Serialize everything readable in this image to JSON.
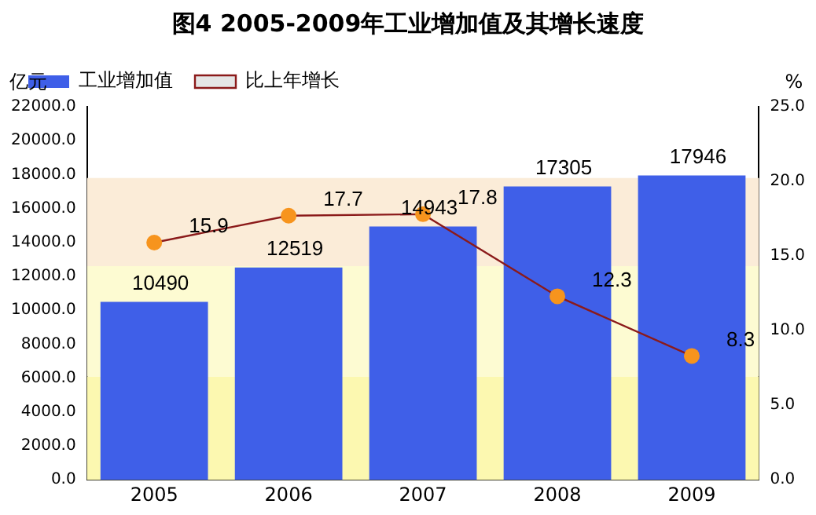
{
  "chart_data": {
    "type": "bar",
    "title": "图4 2005-2009年工业增加值及其增长速度",
    "ylabel": "亿元",
    "y2label": "%",
    "categories": [
      "2005",
      "2006",
      "2007",
      "2008",
      "2009"
    ],
    "series": [
      {
        "name": "工业增加值",
        "type": "bar",
        "color": "#3f5fe8",
        "values": [
          10490,
          12519,
          14943,
          17305,
          17946
        ]
      },
      {
        "name": "比上年增长",
        "type": "line",
        "axis": "y2",
        "color": "#8b1a1a",
        "marker": "circle",
        "values": [
          15.9,
          17.7,
          17.8,
          12.3,
          8.3
        ]
      }
    ],
    "ylim": [
      0,
      22000
    ],
    "yticks": [
      {
        "value": 0,
        "label": "0.0"
      },
      {
        "value": 2000,
        "label": "2000.0"
      },
      {
        "value": 4000,
        "label": "4000.0"
      },
      {
        "value": 6000,
        "label": "6000.0"
      },
      {
        "value": 8000,
        "label": "8000.0"
      },
      {
        "value": 10000,
        "label": "10000.0"
      },
      {
        "value": 12000,
        "label": "12000.0"
      },
      {
        "value": 14000,
        "label": "14000.0"
      },
      {
        "value": 16000,
        "label": "16000.0"
      },
      {
        "value": 18000,
        "label": "18000.0"
      },
      {
        "value": 20000,
        "label": "20000.0"
      },
      {
        "value": 22000,
        "label": "22000.0"
      }
    ],
    "y2lim": [
      0,
      25
    ],
    "y2ticks": [
      {
        "value": 0,
        "label": "0.0"
      },
      {
        "value": 5,
        "label": "5.0"
      },
      {
        "value": 10,
        "label": "10.0"
      },
      {
        "value": 15,
        "label": "15.0"
      },
      {
        "value": 20,
        "label": "20.0"
      },
      {
        "value": 25,
        "label": "25.0"
      }
    ],
    "bands": [
      {
        "axis": "y",
        "from": 0,
        "to": 6100,
        "color": "#fcf8b0"
      },
      {
        "axis": "y",
        "from": 6100,
        "to": 12600,
        "color": "#fdfbd2"
      },
      {
        "axis": "y",
        "from": 12600,
        "to": 17800,
        "color": "#fbecd8"
      }
    ],
    "data_labels": true,
    "legend": "top left"
  }
}
